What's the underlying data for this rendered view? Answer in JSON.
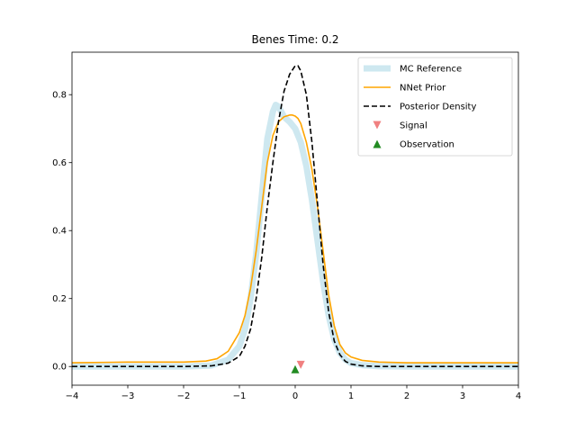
{
  "chart_data": {
    "type": "line",
    "title": "Benes Time: 0.2",
    "xlabel": "",
    "ylabel": "",
    "xlim": [
      -4,
      4
    ],
    "ylim": [
      -0.055,
      0.925
    ],
    "xticks": [
      "−4",
      "−3",
      "−2",
      "−1",
      "0",
      "1",
      "2",
      "3",
      "4"
    ],
    "yticks": [
      "0.0",
      "0.2",
      "0.4",
      "0.6",
      "0.8"
    ],
    "legend_position": "top-right",
    "series": [
      {
        "name": "MC Reference",
        "style": "thick-light",
        "color": "#add8e6",
        "x": [
          -4,
          -3,
          -2,
          -1.5,
          -1.2,
          -1.0,
          -0.9,
          -0.8,
          -0.7,
          -0.6,
          -0.5,
          -0.4,
          -0.35,
          -0.3,
          -0.25,
          -0.2,
          -0.1,
          0,
          0.1,
          0.2,
          0.3,
          0.4,
          0.5,
          0.6,
          0.7,
          0.8,
          0.9,
          1.0,
          1.2,
          1.5,
          2,
          3,
          4
        ],
        "y": [
          0.0,
          0.0,
          0.0,
          0.003,
          0.02,
          0.06,
          0.11,
          0.2,
          0.33,
          0.5,
          0.67,
          0.75,
          0.77,
          0.765,
          0.75,
          0.735,
          0.72,
          0.7,
          0.66,
          0.59,
          0.49,
          0.37,
          0.25,
          0.15,
          0.08,
          0.04,
          0.02,
          0.01,
          0.004,
          0.001,
          0.0,
          0.0,
          0.0
        ]
      },
      {
        "name": "NNet Prior",
        "style": "solid",
        "color": "#ffa500",
        "x": [
          -4,
          -3,
          -2,
          -1.6,
          -1.4,
          -1.2,
          -1.0,
          -0.9,
          -0.8,
          -0.7,
          -0.6,
          -0.5,
          -0.4,
          -0.3,
          -0.2,
          -0.1,
          -0.05,
          0,
          0.05,
          0.1,
          0.2,
          0.3,
          0.4,
          0.5,
          0.6,
          0.7,
          0.8,
          0.9,
          1.0,
          1.2,
          1.5,
          2,
          3,
          4
        ],
        "y": [
          0.011,
          0.013,
          0.013,
          0.016,
          0.023,
          0.045,
          0.1,
          0.15,
          0.23,
          0.34,
          0.47,
          0.6,
          0.68,
          0.72,
          0.735,
          0.74,
          0.74,
          0.737,
          0.73,
          0.715,
          0.66,
          0.58,
          0.47,
          0.34,
          0.21,
          0.12,
          0.065,
          0.04,
          0.028,
          0.018,
          0.013,
          0.011,
          0.011,
          0.011
        ]
      },
      {
        "name": "Posterior Density",
        "style": "dashed",
        "color": "#000000",
        "x": [
          -4,
          -3,
          -2,
          -1.5,
          -1.2,
          -1.0,
          -0.9,
          -0.8,
          -0.7,
          -0.6,
          -0.5,
          -0.4,
          -0.3,
          -0.2,
          -0.1,
          0,
          0.05,
          0.1,
          0.2,
          0.3,
          0.4,
          0.5,
          0.6,
          0.7,
          0.8,
          0.9,
          1.0,
          1.2,
          1.5,
          2,
          3,
          4
        ],
        "y": [
          0.0,
          0.0,
          0.0,
          0.002,
          0.01,
          0.03,
          0.06,
          0.11,
          0.2,
          0.32,
          0.47,
          0.6,
          0.72,
          0.81,
          0.86,
          0.885,
          0.885,
          0.87,
          0.8,
          0.66,
          0.48,
          0.3,
          0.16,
          0.075,
          0.035,
          0.015,
          0.007,
          0.002,
          0.0,
          0.0,
          0.0,
          0.0
        ]
      },
      {
        "name": "Signal",
        "style": "marker-triangle-down",
        "color": "#f08080",
        "x": [
          0.1
        ],
        "y": [
          0.005
        ]
      },
      {
        "name": "Observation",
        "style": "marker-triangle-up",
        "color": "#228b22",
        "x": [
          0.0
        ],
        "y": [
          -0.008
        ]
      }
    ]
  }
}
